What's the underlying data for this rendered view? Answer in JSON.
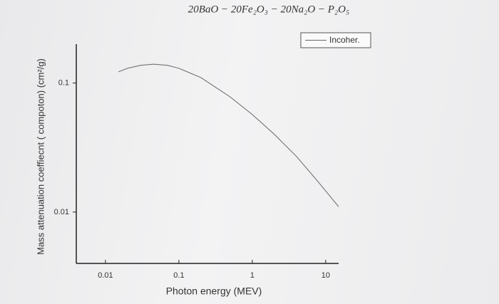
{
  "chart_data": {
    "type": "line",
    "title": "20BaO − 20Fe₂O₃ − 20Na₂O − P₂O₅",
    "xlabel": "Photon energy (MEV)",
    "ylabel": "Mass attenuation coeffiecnt ( compoton) (cm²/g)",
    "x": [
      0.015,
      0.02,
      0.03,
      0.045,
      0.07,
      0.1,
      0.2,
      0.5,
      1,
      2,
      4,
      8,
      15
    ],
    "series": [
      {
        "name": "Incoher.",
        "color": "#666666",
        "values": [
          0.122,
          0.13,
          0.137,
          0.14,
          0.137,
          0.13,
          0.11,
          0.078,
          0.057,
          0.04,
          0.027,
          0.017,
          0.011
        ]
      }
    ],
    "xscale": "log",
    "yscale": "log",
    "xlim": [
      0.004,
      15
    ],
    "ylim": [
      0.004,
      0.2
    ],
    "xticks": [
      0.01,
      0.1,
      1,
      10
    ],
    "yticks": [
      0.01,
      0.1
    ],
    "legend": "top-right"
  }
}
